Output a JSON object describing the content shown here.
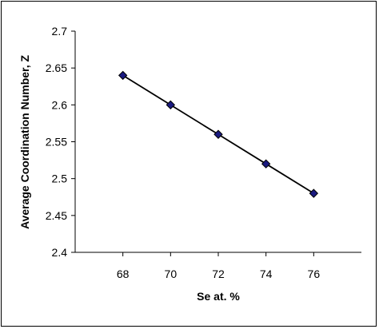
{
  "chart_data": {
    "type": "line",
    "title": "",
    "xlabel": "Se at. %",
    "ylabel": "Average Coordination Number, Z",
    "x_ticks": [
      "68",
      "70",
      "72",
      "74",
      "76"
    ],
    "y_ticks": [
      "2.4",
      "2.45",
      "2.5",
      "2.55",
      "2.6",
      "2.65",
      "2.7"
    ],
    "xlim": [
      66,
      78
    ],
    "ylim": [
      2.4,
      2.7
    ],
    "grid": false,
    "legend": "none",
    "series": [
      {
        "x": [
          68,
          70,
          72,
          74,
          76
        ],
        "y": [
          2.64,
          2.6,
          2.56,
          2.52,
          2.48
        ],
        "marker": "diamond",
        "marker_color": "#1a1a80",
        "line_color": "#000000"
      }
    ]
  }
}
